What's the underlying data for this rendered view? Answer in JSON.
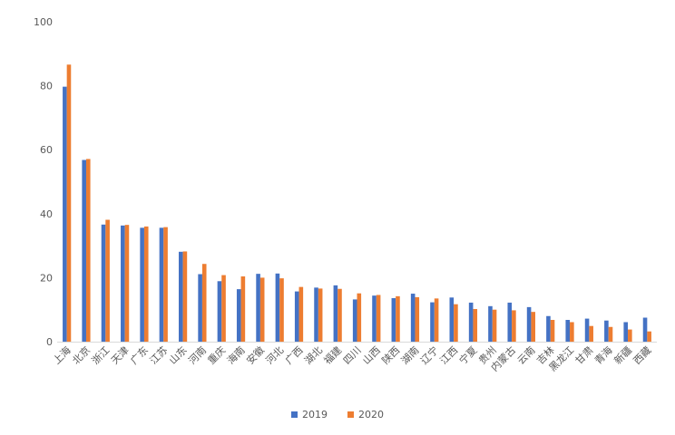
{
  "chart_data": {
    "type": "bar",
    "categories": [
      "上海",
      "北京",
      "浙江",
      "天津",
      "广东",
      "江苏",
      "山东",
      "河南",
      "重庆",
      "海南",
      "安徽",
      "河北",
      "广西",
      "湖北",
      "福建",
      "四川",
      "山西",
      "陕西",
      "湖南",
      "辽宁",
      "江西",
      "宁夏",
      "贵州",
      "内蒙古",
      "云南",
      "吉林",
      "黑龙江",
      "甘肃",
      "青海",
      "新疆",
      "西藏"
    ],
    "series": [
      {
        "name": "2019",
        "color": "#4472C4",
        "values": [
          79.7,
          56.8,
          36.6,
          36.3,
          35.6,
          35.6,
          28.1,
          21.1,
          18.9,
          16.4,
          21.2,
          21.3,
          15.7,
          16.9,
          17.6,
          13.2,
          14.4,
          13.6,
          15.0,
          12.3,
          13.8,
          12.2,
          11.1,
          12.2,
          10.8,
          8.0,
          6.8,
          7.2,
          6.6,
          6.1,
          7.5
        ]
      },
      {
        "name": "2020",
        "color": "#ED7D31",
        "values": [
          86.6,
          57.1,
          38.1,
          36.5,
          36.0,
          35.8,
          28.2,
          24.3,
          20.8,
          20.4,
          20.0,
          19.8,
          17.1,
          16.6,
          16.5,
          15.1,
          14.6,
          14.2,
          13.9,
          13.5,
          11.7,
          10.2,
          10.0,
          9.8,
          9.3,
          6.8,
          6.1,
          4.9,
          4.6,
          3.8,
          3.2
        ]
      }
    ],
    "yticks": [
      "0",
      "20",
      "40",
      "60",
      "80",
      "100"
    ],
    "ylim": [
      0,
      100
    ],
    "legend": "bottom",
    "grid": false
  }
}
